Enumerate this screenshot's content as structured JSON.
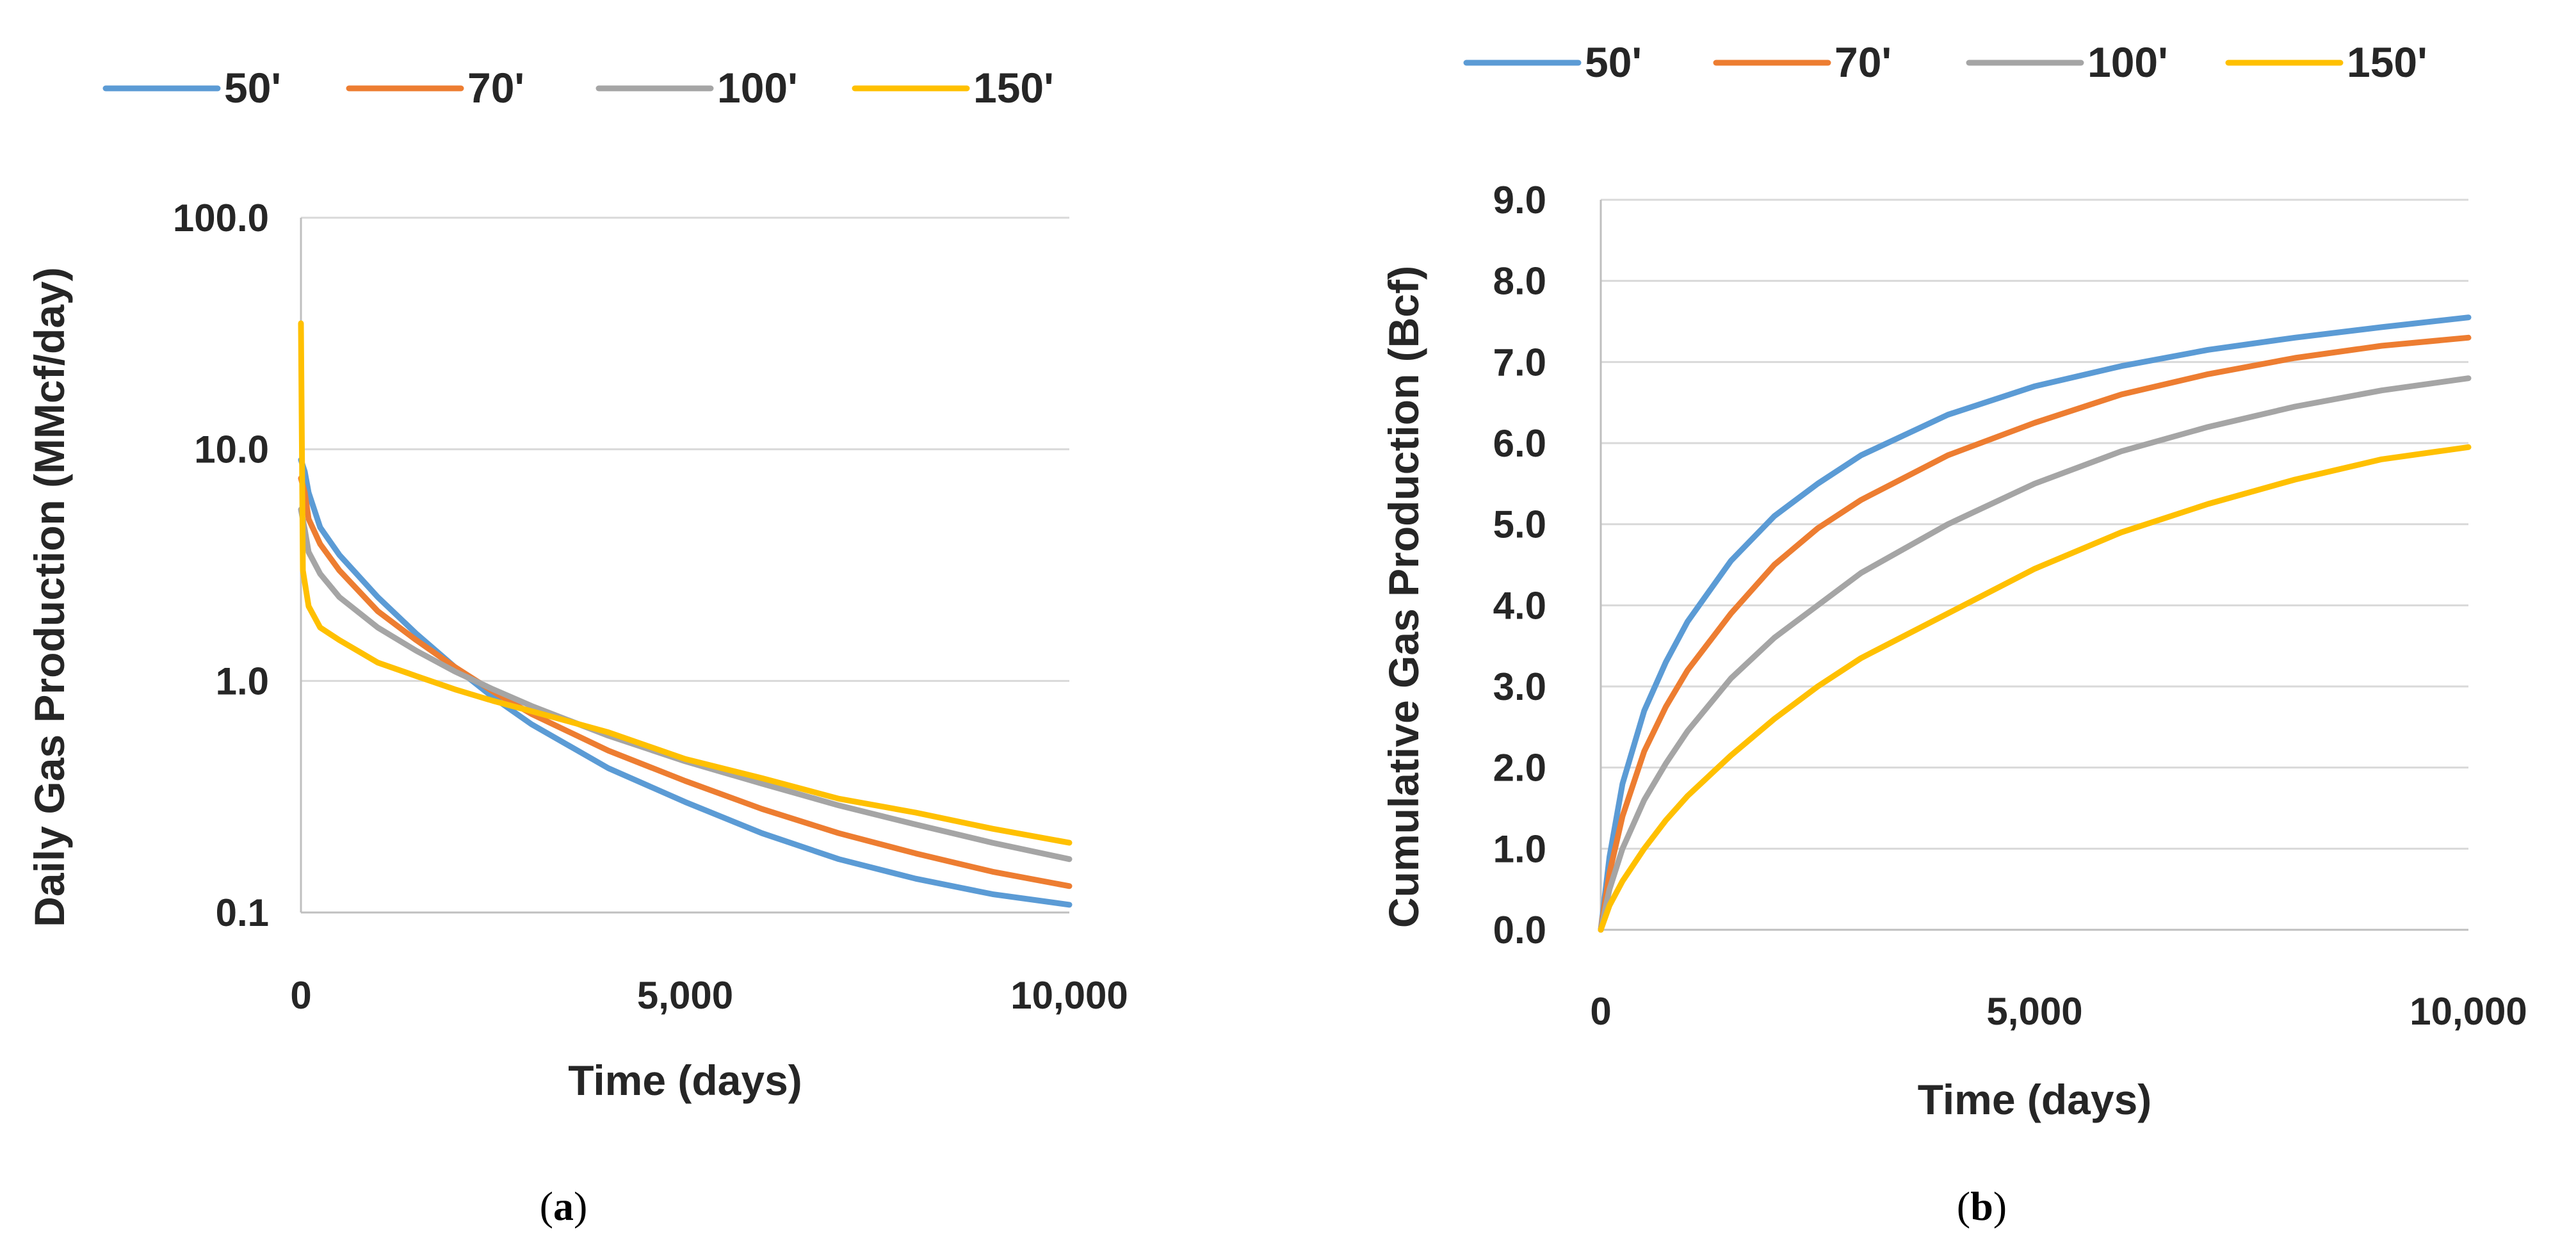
{
  "colors": {
    "s50": "#5B9BD5",
    "s70": "#ED7D31",
    "s100": "#A5A5A5",
    "s150": "#FFC000",
    "grid": "#D9D9D9",
    "text": "#262626"
  },
  "chart_data": [
    {
      "id": "a",
      "type": "line",
      "panel_label": "(a)",
      "panel_letter": "a",
      "title": "",
      "xlabel": "Time (days)",
      "ylabel": "Daily Gas Production  (MMcf/day)",
      "yscale": "log",
      "xlim": [
        0,
        10000
      ],
      "ylim": [
        0.1,
        100
      ],
      "xticks": [
        0,
        5000,
        10000
      ],
      "xtick_labels": [
        "0",
        "5,000",
        "10,000"
      ],
      "yticks": [
        0.1,
        1,
        10,
        100
      ],
      "ytick_labels": [
        "0.1",
        "1.0",
        "10.0",
        "100.0"
      ],
      "grid": true,
      "legend": "top",
      "series": [
        {
          "name": "50'",
          "color": "#5B9BD5",
          "x": [
            0,
            50,
            100,
            250,
            500,
            1000,
            1500,
            2000,
            2500,
            3000,
            4000,
            5000,
            6000,
            7000,
            8000,
            9000,
            10000
          ],
          "y": [
            9.0,
            8.0,
            6.5,
            4.6,
            3.5,
            2.3,
            1.6,
            1.15,
            0.85,
            0.65,
            0.42,
            0.3,
            0.22,
            0.17,
            0.14,
            0.12,
            0.108
          ]
        },
        {
          "name": "70'",
          "color": "#ED7D31",
          "x": [
            0,
            50,
            100,
            250,
            500,
            1000,
            1500,
            2000,
            2500,
            3000,
            4000,
            5000,
            6000,
            7000,
            8000,
            9000,
            10000
          ],
          "y": [
            7.5,
            6.5,
            5.0,
            3.9,
            3.0,
            2.0,
            1.5,
            1.15,
            0.9,
            0.72,
            0.5,
            0.37,
            0.28,
            0.22,
            0.18,
            0.15,
            0.13
          ]
        },
        {
          "name": "100'",
          "color": "#A5A5A5",
          "x": [
            0,
            50,
            100,
            250,
            500,
            1000,
            1500,
            2000,
            2500,
            3000,
            4000,
            5000,
            6000,
            7000,
            8000,
            9000,
            10000
          ],
          "y": [
            5.5,
            4.5,
            3.6,
            2.9,
            2.3,
            1.7,
            1.35,
            1.1,
            0.92,
            0.78,
            0.58,
            0.45,
            0.36,
            0.29,
            0.24,
            0.2,
            0.17
          ]
        },
        {
          "name": "150'",
          "color": "#FFC000",
          "x": [
            0,
            25,
            100,
            250,
            500,
            1000,
            1500,
            2000,
            2500,
            3000,
            4000,
            5000,
            6000,
            7000,
            8000,
            9000,
            10000
          ],
          "y": [
            35,
            3.0,
            2.1,
            1.7,
            1.5,
            1.2,
            1.05,
            0.92,
            0.82,
            0.74,
            0.6,
            0.46,
            0.38,
            0.31,
            0.27,
            0.23,
            0.2
          ]
        }
      ]
    },
    {
      "id": "b",
      "type": "line",
      "panel_label": "(b)",
      "panel_letter": "b",
      "title": "",
      "xlabel": "Time (days)",
      "ylabel": "Cumulative Gas Production (Bcf)",
      "yscale": "linear",
      "xlim": [
        0,
        10000
      ],
      "ylim": [
        0,
        9
      ],
      "xticks": [
        0,
        5000,
        10000
      ],
      "xtick_labels": [
        "0",
        "5,000",
        "10,000"
      ],
      "yticks": [
        0,
        1,
        2,
        3,
        4,
        5,
        6,
        7,
        8,
        9
      ],
      "ytick_labels": [
        "0.0",
        "1.0",
        "2.0",
        "3.0",
        "4.0",
        "5.0",
        "6.0",
        "7.0",
        "8.0",
        "9.0"
      ],
      "grid": true,
      "legend": "top",
      "series": [
        {
          "name": "50'",
          "color": "#5B9BD5",
          "x": [
            0,
            100,
            250,
            500,
            750,
            1000,
            1500,
            2000,
            2500,
            3000,
            4000,
            5000,
            6000,
            7000,
            8000,
            9000,
            10000
          ],
          "y": [
            0,
            0.9,
            1.8,
            2.7,
            3.3,
            3.8,
            4.55,
            5.1,
            5.5,
            5.85,
            6.35,
            6.7,
            6.95,
            7.15,
            7.3,
            7.43,
            7.55
          ]
        },
        {
          "name": "70'",
          "color": "#ED7D31",
          "x": [
            0,
            100,
            250,
            500,
            750,
            1000,
            1500,
            2000,
            2500,
            3000,
            4000,
            5000,
            6000,
            7000,
            8000,
            9000,
            10000
          ],
          "y": [
            0,
            0.7,
            1.4,
            2.2,
            2.75,
            3.2,
            3.9,
            4.5,
            4.95,
            5.3,
            5.85,
            6.25,
            6.6,
            6.85,
            7.05,
            7.2,
            7.3
          ]
        },
        {
          "name": "100'",
          "color": "#A5A5A5",
          "x": [
            0,
            100,
            250,
            500,
            750,
            1000,
            1500,
            2000,
            2500,
            3000,
            4000,
            5000,
            6000,
            7000,
            8000,
            9000,
            10000
          ],
          "y": [
            0,
            0.5,
            1.0,
            1.6,
            2.05,
            2.45,
            3.1,
            3.6,
            4.0,
            4.4,
            5.0,
            5.5,
            5.9,
            6.2,
            6.45,
            6.65,
            6.8
          ]
        },
        {
          "name": "150'",
          "color": "#FFC000",
          "x": [
            0,
            100,
            250,
            500,
            750,
            1000,
            1500,
            2000,
            2500,
            3000,
            4000,
            5000,
            6000,
            7000,
            8000,
            9000,
            10000
          ],
          "y": [
            0,
            0.3,
            0.6,
            1.0,
            1.35,
            1.65,
            2.15,
            2.6,
            3.0,
            3.35,
            3.9,
            4.45,
            4.9,
            5.25,
            5.55,
            5.8,
            5.95
          ]
        }
      ]
    }
  ]
}
